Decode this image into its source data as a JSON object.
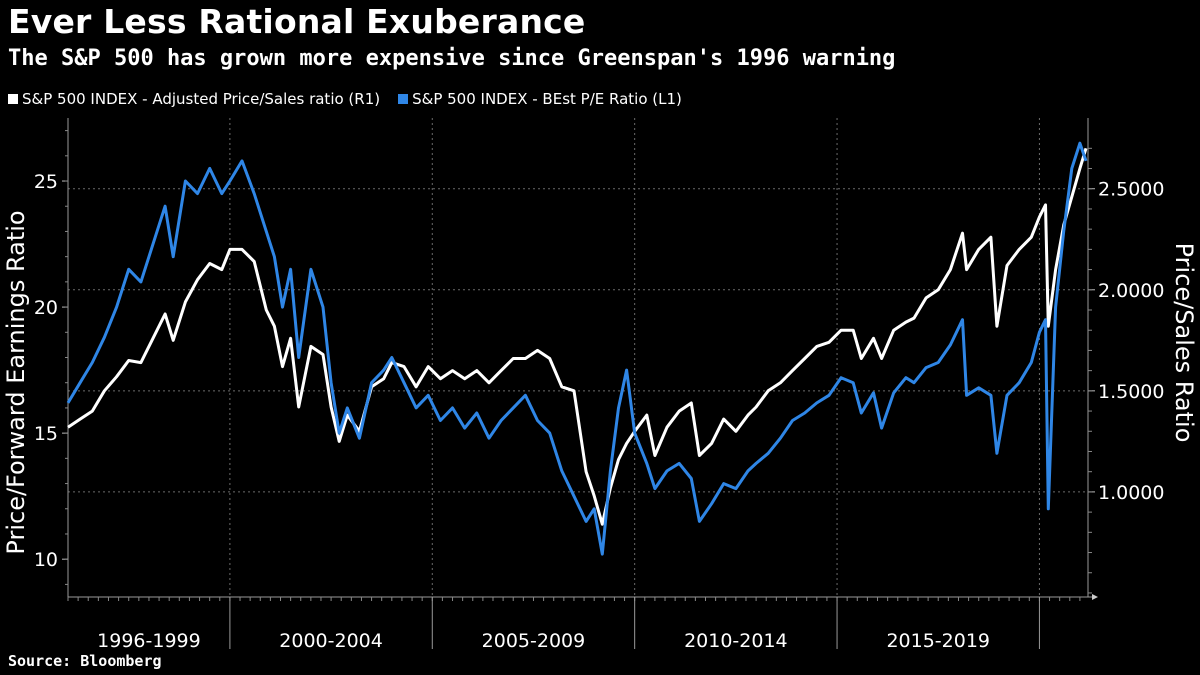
{
  "header": {
    "title": "Ever Less Rational Exuberance",
    "subtitle": "The S&P 500 has grown more expensive since Greenspan's 1996 warning"
  },
  "legend": [
    {
      "label": "S&P 500 INDEX - Adjusted Price/Sales ratio (R1)",
      "color": "#ffffff"
    },
    {
      "label": "S&P 500 INDEX - BEst P/E Ratio (L1)",
      "color": "#2f86e6"
    }
  ],
  "source": "Source: Bloomberg",
  "chart_data": {
    "type": "line",
    "grid": true,
    "x_range": [
      1996.0,
      2021.2
    ],
    "x_period_labels": [
      "1996-1999",
      "2000-2004",
      "2005-2009",
      "2010-2014",
      "2015-2019"
    ],
    "x_period_boundaries": [
      2000.0,
      2005.0,
      2010.0,
      2015.0,
      2020.0
    ],
    "left_axis": {
      "label": "Price/Forward Earnings Ratio",
      "range": [
        8.5,
        27.5
      ],
      "ticks": [
        10,
        15,
        20,
        25
      ],
      "tick_labels": [
        "10",
        "15",
        "20",
        "25"
      ]
    },
    "right_axis": {
      "label": "Price/Sales Ratio",
      "range": [
        0.48,
        2.85
      ],
      "ticks": [
        1.0,
        1.5,
        2.0,
        2.5
      ],
      "tick_labels": [
        "1.0000",
        "1.5000",
        "2.0000",
        "2.5000"
      ]
    },
    "series": [
      {
        "name": "S&P 500 INDEX - Adjusted Price/Sales ratio (R1)",
        "axis": "right",
        "color": "#ffffff",
        "points": [
          [
            1996.0,
            1.32
          ],
          [
            1996.3,
            1.36
          ],
          [
            1996.6,
            1.4
          ],
          [
            1996.9,
            1.5
          ],
          [
            1997.2,
            1.57
          ],
          [
            1997.5,
            1.65
          ],
          [
            1997.8,
            1.64
          ],
          [
            1998.1,
            1.76
          ],
          [
            1998.4,
            1.88
          ],
          [
            1998.6,
            1.75
          ],
          [
            1998.9,
            1.94
          ],
          [
            1999.2,
            2.05
          ],
          [
            1999.5,
            2.13
          ],
          [
            1999.8,
            2.1
          ],
          [
            2000.0,
            2.2
          ],
          [
            2000.3,
            2.2
          ],
          [
            2000.6,
            2.14
          ],
          [
            2000.9,
            1.9
          ],
          [
            2001.1,
            1.82
          ],
          [
            2001.3,
            1.62
          ],
          [
            2001.5,
            1.76
          ],
          [
            2001.7,
            1.42
          ],
          [
            2002.0,
            1.72
          ],
          [
            2002.3,
            1.68
          ],
          [
            2002.5,
            1.42
          ],
          [
            2002.7,
            1.25
          ],
          [
            2002.9,
            1.38
          ],
          [
            2003.2,
            1.3
          ],
          [
            2003.5,
            1.52
          ],
          [
            2003.8,
            1.56
          ],
          [
            2004.0,
            1.64
          ],
          [
            2004.3,
            1.62
          ],
          [
            2004.6,
            1.52
          ],
          [
            2004.9,
            1.62
          ],
          [
            2005.2,
            1.56
          ],
          [
            2005.5,
            1.6
          ],
          [
            2005.8,
            1.56
          ],
          [
            2006.1,
            1.6
          ],
          [
            2006.4,
            1.54
          ],
          [
            2006.7,
            1.6
          ],
          [
            2007.0,
            1.66
          ],
          [
            2007.3,
            1.66
          ],
          [
            2007.6,
            1.7
          ],
          [
            2007.9,
            1.66
          ],
          [
            2008.2,
            1.52
          ],
          [
            2008.5,
            1.5
          ],
          [
            2008.8,
            1.1
          ],
          [
            2009.0,
            0.98
          ],
          [
            2009.2,
            0.84
          ],
          [
            2009.4,
            1.02
          ],
          [
            2009.6,
            1.16
          ],
          [
            2009.8,
            1.24
          ],
          [
            2010.0,
            1.3
          ],
          [
            2010.3,
            1.38
          ],
          [
            2010.5,
            1.18
          ],
          [
            2010.8,
            1.32
          ],
          [
            2011.1,
            1.4
          ],
          [
            2011.4,
            1.44
          ],
          [
            2011.6,
            1.18
          ],
          [
            2011.9,
            1.24
          ],
          [
            2012.2,
            1.36
          ],
          [
            2012.5,
            1.3
          ],
          [
            2012.8,
            1.38
          ],
          [
            2013.0,
            1.42
          ],
          [
            2013.3,
            1.5
          ],
          [
            2013.6,
            1.54
          ],
          [
            2013.9,
            1.6
          ],
          [
            2014.2,
            1.66
          ],
          [
            2014.5,
            1.72
          ],
          [
            2014.8,
            1.74
          ],
          [
            2015.1,
            1.8
          ],
          [
            2015.4,
            1.8
          ],
          [
            2015.6,
            1.66
          ],
          [
            2015.9,
            1.76
          ],
          [
            2016.1,
            1.66
          ],
          [
            2016.4,
            1.8
          ],
          [
            2016.7,
            1.84
          ],
          [
            2016.9,
            1.86
          ],
          [
            2017.2,
            1.96
          ],
          [
            2017.5,
            2.0
          ],
          [
            2017.8,
            2.1
          ],
          [
            2018.1,
            2.28
          ],
          [
            2018.2,
            2.1
          ],
          [
            2018.5,
            2.2
          ],
          [
            2018.8,
            2.26
          ],
          [
            2018.95,
            1.82
          ],
          [
            2019.2,
            2.12
          ],
          [
            2019.5,
            2.2
          ],
          [
            2019.8,
            2.26
          ],
          [
            2020.0,
            2.36
          ],
          [
            2020.15,
            2.42
          ],
          [
            2020.22,
            1.82
          ],
          [
            2020.4,
            2.1
          ],
          [
            2020.6,
            2.32
          ],
          [
            2020.8,
            2.46
          ],
          [
            2021.0,
            2.6
          ],
          [
            2021.15,
            2.7
          ]
        ]
      },
      {
        "name": "S&P 500 INDEX - BEst P/E Ratio (L1)",
        "axis": "left",
        "color": "#2f86e6",
        "points": [
          [
            1996.0,
            16.2
          ],
          [
            1996.3,
            17.0
          ],
          [
            1996.6,
            17.8
          ],
          [
            1996.9,
            18.8
          ],
          [
            1997.2,
            20.0
          ],
          [
            1997.5,
            21.5
          ],
          [
            1997.8,
            21.0
          ],
          [
            1998.1,
            22.5
          ],
          [
            1998.4,
            24.0
          ],
          [
            1998.6,
            22.0
          ],
          [
            1998.9,
            25.0
          ],
          [
            1999.2,
            24.5
          ],
          [
            1999.5,
            25.5
          ],
          [
            1999.8,
            24.5
          ],
          [
            2000.0,
            25.0
          ],
          [
            2000.3,
            25.8
          ],
          [
            2000.6,
            24.5
          ],
          [
            2000.9,
            23.0
          ],
          [
            2001.1,
            22.0
          ],
          [
            2001.3,
            20.0
          ],
          [
            2001.5,
            21.5
          ],
          [
            2001.7,
            18.0
          ],
          [
            2002.0,
            21.5
          ],
          [
            2002.3,
            20.0
          ],
          [
            2002.5,
            17.0
          ],
          [
            2002.7,
            15.0
          ],
          [
            2002.9,
            16.0
          ],
          [
            2003.2,
            14.8
          ],
          [
            2003.5,
            17.0
          ],
          [
            2003.8,
            17.5
          ],
          [
            2004.0,
            18.0
          ],
          [
            2004.3,
            17.0
          ],
          [
            2004.6,
            16.0
          ],
          [
            2004.9,
            16.5
          ],
          [
            2005.2,
            15.5
          ],
          [
            2005.5,
            16.0
          ],
          [
            2005.8,
            15.2
          ],
          [
            2006.1,
            15.8
          ],
          [
            2006.4,
            14.8
          ],
          [
            2006.7,
            15.5
          ],
          [
            2007.0,
            16.0
          ],
          [
            2007.3,
            16.5
          ],
          [
            2007.6,
            15.5
          ],
          [
            2007.9,
            15.0
          ],
          [
            2008.2,
            13.5
          ],
          [
            2008.5,
            12.5
          ],
          [
            2008.8,
            11.5
          ],
          [
            2009.0,
            12.0
          ],
          [
            2009.2,
            10.2
          ],
          [
            2009.4,
            13.5
          ],
          [
            2009.6,
            16.0
          ],
          [
            2009.8,
            17.5
          ],
          [
            2010.0,
            15.0
          ],
          [
            2010.3,
            13.8
          ],
          [
            2010.5,
            12.8
          ],
          [
            2010.8,
            13.5
          ],
          [
            2011.1,
            13.8
          ],
          [
            2011.4,
            13.2
          ],
          [
            2011.6,
            11.5
          ],
          [
            2011.9,
            12.2
          ],
          [
            2012.2,
            13.0
          ],
          [
            2012.5,
            12.8
          ],
          [
            2012.8,
            13.5
          ],
          [
            2013.0,
            13.8
          ],
          [
            2013.3,
            14.2
          ],
          [
            2013.6,
            14.8
          ],
          [
            2013.9,
            15.5
          ],
          [
            2014.2,
            15.8
          ],
          [
            2014.5,
            16.2
          ],
          [
            2014.8,
            16.5
          ],
          [
            2015.1,
            17.2
          ],
          [
            2015.4,
            17.0
          ],
          [
            2015.6,
            15.8
          ],
          [
            2015.9,
            16.6
          ],
          [
            2016.1,
            15.2
          ],
          [
            2016.4,
            16.6
          ],
          [
            2016.7,
            17.2
          ],
          [
            2016.9,
            17.0
          ],
          [
            2017.2,
            17.6
          ],
          [
            2017.5,
            17.8
          ],
          [
            2017.8,
            18.5
          ],
          [
            2018.1,
            19.5
          ],
          [
            2018.2,
            16.5
          ],
          [
            2018.5,
            16.8
          ],
          [
            2018.8,
            16.5
          ],
          [
            2018.95,
            14.2
          ],
          [
            2019.2,
            16.5
          ],
          [
            2019.5,
            17.0
          ],
          [
            2019.8,
            17.8
          ],
          [
            2020.0,
            19.0
          ],
          [
            2020.15,
            19.5
          ],
          [
            2020.22,
            12.0
          ],
          [
            2020.4,
            20.0
          ],
          [
            2020.6,
            23.0
          ],
          [
            2020.8,
            25.5
          ],
          [
            2021.0,
            26.5
          ],
          [
            2021.15,
            25.8
          ]
        ]
      }
    ]
  }
}
